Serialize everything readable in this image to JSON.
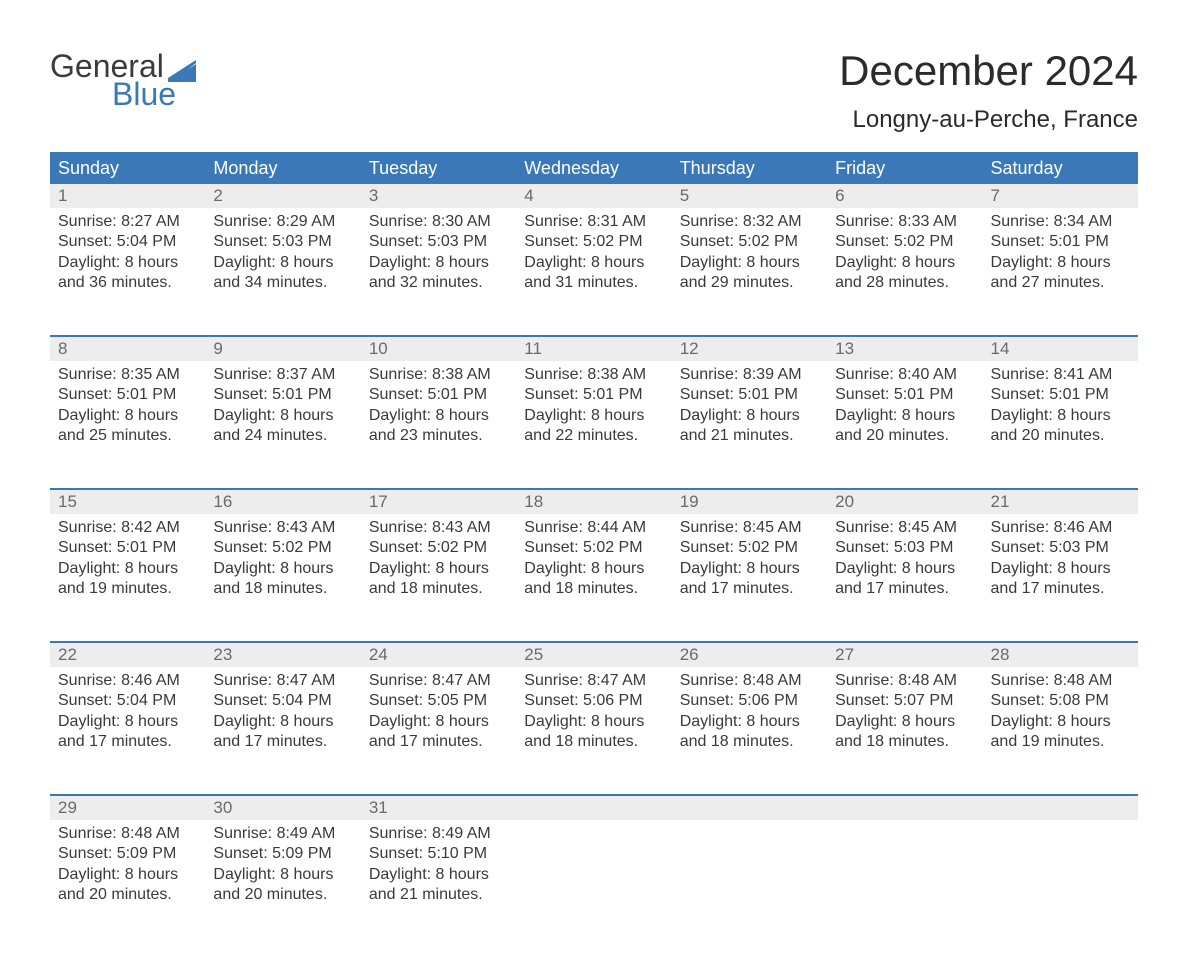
{
  "brand": {
    "word1": "General",
    "word2": "Blue",
    "word1_color": "#3b3b3b",
    "word2_color": "#3a78b8",
    "flag_color": "#3a78b8"
  },
  "title": {
    "month": "December 2024",
    "location": "Longny-au-Perche, France",
    "title_fontsize": 42,
    "location_fontsize": 24,
    "text_color": "#2b2b2b"
  },
  "calendar": {
    "header_bg": "#3a78b8",
    "header_text_color": "#ffffff",
    "daynum_bg": "#ededed",
    "daynum_color": "#6a6a6a",
    "body_text_color": "#3a3a3a",
    "week_separator_color": "#3a78b8",
    "columns": [
      "Sunday",
      "Monday",
      "Tuesday",
      "Wednesday",
      "Thursday",
      "Friday",
      "Saturday"
    ],
    "weeks": [
      [
        {
          "day": "1",
          "sunrise": "Sunrise: 8:27 AM",
          "sunset": "Sunset: 5:04 PM",
          "dl1": "Daylight: 8 hours",
          "dl2": "and 36 minutes."
        },
        {
          "day": "2",
          "sunrise": "Sunrise: 8:29 AM",
          "sunset": "Sunset: 5:03 PM",
          "dl1": "Daylight: 8 hours",
          "dl2": "and 34 minutes."
        },
        {
          "day": "3",
          "sunrise": "Sunrise: 8:30 AM",
          "sunset": "Sunset: 5:03 PM",
          "dl1": "Daylight: 8 hours",
          "dl2": "and 32 minutes."
        },
        {
          "day": "4",
          "sunrise": "Sunrise: 8:31 AM",
          "sunset": "Sunset: 5:02 PM",
          "dl1": "Daylight: 8 hours",
          "dl2": "and 31 minutes."
        },
        {
          "day": "5",
          "sunrise": "Sunrise: 8:32 AM",
          "sunset": "Sunset: 5:02 PM",
          "dl1": "Daylight: 8 hours",
          "dl2": "and 29 minutes."
        },
        {
          "day": "6",
          "sunrise": "Sunrise: 8:33 AM",
          "sunset": "Sunset: 5:02 PM",
          "dl1": "Daylight: 8 hours",
          "dl2": "and 28 minutes."
        },
        {
          "day": "7",
          "sunrise": "Sunrise: 8:34 AM",
          "sunset": "Sunset: 5:01 PM",
          "dl1": "Daylight: 8 hours",
          "dl2": "and 27 minutes."
        }
      ],
      [
        {
          "day": "8",
          "sunrise": "Sunrise: 8:35 AM",
          "sunset": "Sunset: 5:01 PM",
          "dl1": "Daylight: 8 hours",
          "dl2": "and 25 minutes."
        },
        {
          "day": "9",
          "sunrise": "Sunrise: 8:37 AM",
          "sunset": "Sunset: 5:01 PM",
          "dl1": "Daylight: 8 hours",
          "dl2": "and 24 minutes."
        },
        {
          "day": "10",
          "sunrise": "Sunrise: 8:38 AM",
          "sunset": "Sunset: 5:01 PM",
          "dl1": "Daylight: 8 hours",
          "dl2": "and 23 minutes."
        },
        {
          "day": "11",
          "sunrise": "Sunrise: 8:38 AM",
          "sunset": "Sunset: 5:01 PM",
          "dl1": "Daylight: 8 hours",
          "dl2": "and 22 minutes."
        },
        {
          "day": "12",
          "sunrise": "Sunrise: 8:39 AM",
          "sunset": "Sunset: 5:01 PM",
          "dl1": "Daylight: 8 hours",
          "dl2": "and 21 minutes."
        },
        {
          "day": "13",
          "sunrise": "Sunrise: 8:40 AM",
          "sunset": "Sunset: 5:01 PM",
          "dl1": "Daylight: 8 hours",
          "dl2": "and 20 minutes."
        },
        {
          "day": "14",
          "sunrise": "Sunrise: 8:41 AM",
          "sunset": "Sunset: 5:01 PM",
          "dl1": "Daylight: 8 hours",
          "dl2": "and 20 minutes."
        }
      ],
      [
        {
          "day": "15",
          "sunrise": "Sunrise: 8:42 AM",
          "sunset": "Sunset: 5:01 PM",
          "dl1": "Daylight: 8 hours",
          "dl2": "and 19 minutes."
        },
        {
          "day": "16",
          "sunrise": "Sunrise: 8:43 AM",
          "sunset": "Sunset: 5:02 PM",
          "dl1": "Daylight: 8 hours",
          "dl2": "and 18 minutes."
        },
        {
          "day": "17",
          "sunrise": "Sunrise: 8:43 AM",
          "sunset": "Sunset: 5:02 PM",
          "dl1": "Daylight: 8 hours",
          "dl2": "and 18 minutes."
        },
        {
          "day": "18",
          "sunrise": "Sunrise: 8:44 AM",
          "sunset": "Sunset: 5:02 PM",
          "dl1": "Daylight: 8 hours",
          "dl2": "and 18 minutes."
        },
        {
          "day": "19",
          "sunrise": "Sunrise: 8:45 AM",
          "sunset": "Sunset: 5:02 PM",
          "dl1": "Daylight: 8 hours",
          "dl2": "and 17 minutes."
        },
        {
          "day": "20",
          "sunrise": "Sunrise: 8:45 AM",
          "sunset": "Sunset: 5:03 PM",
          "dl1": "Daylight: 8 hours",
          "dl2": "and 17 minutes."
        },
        {
          "day": "21",
          "sunrise": "Sunrise: 8:46 AM",
          "sunset": "Sunset: 5:03 PM",
          "dl1": "Daylight: 8 hours",
          "dl2": "and 17 minutes."
        }
      ],
      [
        {
          "day": "22",
          "sunrise": "Sunrise: 8:46 AM",
          "sunset": "Sunset: 5:04 PM",
          "dl1": "Daylight: 8 hours",
          "dl2": "and 17 minutes."
        },
        {
          "day": "23",
          "sunrise": "Sunrise: 8:47 AM",
          "sunset": "Sunset: 5:04 PM",
          "dl1": "Daylight: 8 hours",
          "dl2": "and 17 minutes."
        },
        {
          "day": "24",
          "sunrise": "Sunrise: 8:47 AM",
          "sunset": "Sunset: 5:05 PM",
          "dl1": "Daylight: 8 hours",
          "dl2": "and 17 minutes."
        },
        {
          "day": "25",
          "sunrise": "Sunrise: 8:47 AM",
          "sunset": "Sunset: 5:06 PM",
          "dl1": "Daylight: 8 hours",
          "dl2": "and 18 minutes."
        },
        {
          "day": "26",
          "sunrise": "Sunrise: 8:48 AM",
          "sunset": "Sunset: 5:06 PM",
          "dl1": "Daylight: 8 hours",
          "dl2": "and 18 minutes."
        },
        {
          "day": "27",
          "sunrise": "Sunrise: 8:48 AM",
          "sunset": "Sunset: 5:07 PM",
          "dl1": "Daylight: 8 hours",
          "dl2": "and 18 minutes."
        },
        {
          "day": "28",
          "sunrise": "Sunrise: 8:48 AM",
          "sunset": "Sunset: 5:08 PM",
          "dl1": "Daylight: 8 hours",
          "dl2": "and 19 minutes."
        }
      ],
      [
        {
          "day": "29",
          "sunrise": "Sunrise: 8:48 AM",
          "sunset": "Sunset: 5:09 PM",
          "dl1": "Daylight: 8 hours",
          "dl2": "and 20 minutes."
        },
        {
          "day": "30",
          "sunrise": "Sunrise: 8:49 AM",
          "sunset": "Sunset: 5:09 PM",
          "dl1": "Daylight: 8 hours",
          "dl2": "and 20 minutes."
        },
        {
          "day": "31",
          "sunrise": "Sunrise: 8:49 AM",
          "sunset": "Sunset: 5:10 PM",
          "dl1": "Daylight: 8 hours",
          "dl2": "and 21 minutes."
        },
        {
          "day": "",
          "sunrise": "",
          "sunset": "",
          "dl1": "",
          "dl2": ""
        },
        {
          "day": "",
          "sunrise": "",
          "sunset": "",
          "dl1": "",
          "dl2": ""
        },
        {
          "day": "",
          "sunrise": "",
          "sunset": "",
          "dl1": "",
          "dl2": ""
        },
        {
          "day": "",
          "sunrise": "",
          "sunset": "",
          "dl1": "",
          "dl2": ""
        }
      ]
    ]
  }
}
